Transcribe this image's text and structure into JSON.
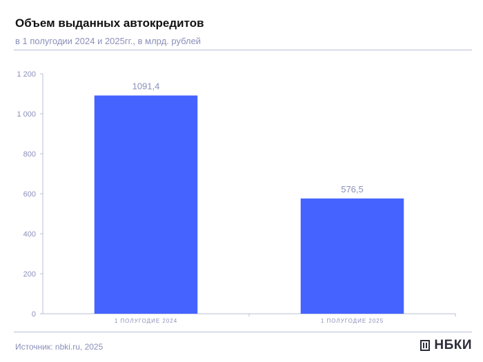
{
  "header": {
    "title": "Объем выданных автокредитов",
    "subtitle": "в 1 полугодии 2024 и 2025гг., в млрд. рублей"
  },
  "footer": {
    "source": "Источник: nbki.ru, 2025",
    "brand": "НБКИ"
  },
  "colors": {
    "bar": "#4563ff",
    "axis": "#b9bcd6",
    "tick_text": "#8a8fb8",
    "label_text": "#8a8fb8"
  },
  "chart_data": {
    "type": "bar",
    "title": "Объем выданных автокредитов",
    "subtitle": "в 1 полугодии 2024 и 2025гг., в млрд. рублей",
    "categories": [
      "1 ПОЛУГОДИЕ 2024",
      "1 ПОЛУГОДИЕ 2025"
    ],
    "values": [
      1091.4,
      576.5
    ],
    "value_labels": [
      "1091,4",
      "576,5"
    ],
    "ylim": [
      0,
      1200
    ],
    "yticks": [
      0,
      200,
      400,
      600,
      800,
      1000,
      1200
    ],
    "ytick_labels": [
      "0",
      "200",
      "400",
      "600",
      "800",
      "1 000",
      "1 200"
    ],
    "grid": false,
    "legend": "none"
  }
}
